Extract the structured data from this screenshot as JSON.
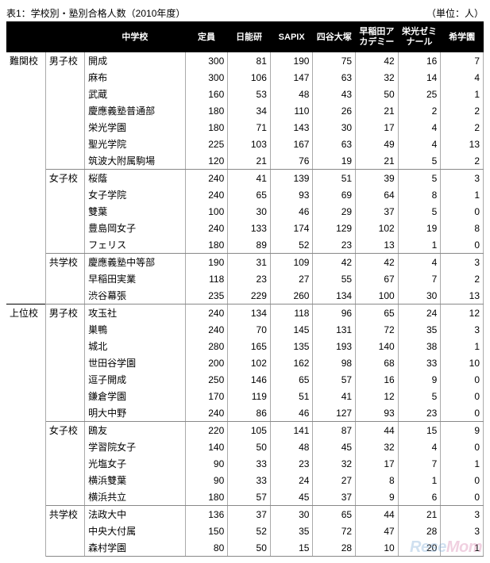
{
  "title": "表1：学校別・塾別合格人数（2010年度）",
  "unit": "（単位：人）",
  "watermark": {
    "left": "Rese",
    "right": "Mom"
  },
  "cram_schools": [
    "日能研",
    "SAPIX",
    "四谷大塚",
    "早稲田アカデミー",
    "栄光ゼミナール",
    "希学園"
  ],
  "col_labels": {
    "school": "中学校",
    "capacity": "定員"
  },
  "tiers": [
    {
      "name": "難関校",
      "groups": [
        {
          "type": "男子校",
          "rows": [
            {
              "school": "開成",
              "capacity": 300,
              "vals": [
                81,
                190,
                75,
                42,
                16,
                7
              ]
            },
            {
              "school": "麻布",
              "capacity": 300,
              "vals": [
                106,
                147,
                63,
                32,
                14,
                4
              ]
            },
            {
              "school": "武蔵",
              "capacity": 160,
              "vals": [
                53,
                48,
                43,
                50,
                25,
                1
              ]
            },
            {
              "school": "慶應義塾普通部",
              "capacity": 180,
              "vals": [
                34,
                110,
                26,
                21,
                2,
                2
              ]
            },
            {
              "school": "栄光学園",
              "capacity": 180,
              "vals": [
                71,
                143,
                30,
                17,
                4,
                2
              ]
            },
            {
              "school": "聖光学院",
              "capacity": 225,
              "vals": [
                103,
                167,
                63,
                49,
                4,
                13
              ]
            },
            {
              "school": "筑波大附属駒場",
              "capacity": 120,
              "vals": [
                21,
                76,
                19,
                21,
                5,
                2
              ]
            }
          ]
        },
        {
          "type": "女子校",
          "rows": [
            {
              "school": "桜蔭",
              "capacity": 240,
              "vals": [
                41,
                139,
                51,
                39,
                5,
                3
              ]
            },
            {
              "school": "女子学院",
              "capacity": 240,
              "vals": [
                65,
                93,
                69,
                64,
                8,
                1
              ]
            },
            {
              "school": "雙葉",
              "capacity": 100,
              "vals": [
                30,
                46,
                29,
                37,
                5,
                0
              ]
            },
            {
              "school": "豊島岡女子",
              "capacity": 240,
              "vals": [
                133,
                174,
                129,
                102,
                19,
                8
              ]
            },
            {
              "school": "フェリス",
              "capacity": 180,
              "vals": [
                89,
                52,
                23,
                13,
                1,
                0
              ]
            }
          ]
        },
        {
          "type": "共学校",
          "rows": [
            {
              "school": "慶應義塾中等部",
              "capacity": 190,
              "vals": [
                31,
                109,
                42,
                42,
                4,
                3
              ]
            },
            {
              "school": "早稲田実業",
              "capacity": 118,
              "vals": [
                23,
                27,
                55,
                67,
                7,
                2
              ]
            },
            {
              "school": "渋谷幕張",
              "capacity": 235,
              "vals": [
                229,
                260,
                134,
                100,
                30,
                13
              ]
            }
          ]
        }
      ]
    },
    {
      "name": "上位校",
      "groups": [
        {
          "type": "男子校",
          "rows": [
            {
              "school": "攻玉社",
              "capacity": 240,
              "vals": [
                134,
                118,
                96,
                65,
                24,
                12
              ]
            },
            {
              "school": "巣鴨",
              "capacity": 240,
              "vals": [
                70,
                145,
                131,
                72,
                35,
                3
              ]
            },
            {
              "school": "城北",
              "capacity": 280,
              "vals": [
                165,
                135,
                193,
                140,
                38,
                1
              ]
            },
            {
              "school": "世田谷学園",
              "capacity": 200,
              "vals": [
                102,
                162,
                98,
                68,
                33,
                10
              ]
            },
            {
              "school": "逗子開成",
              "capacity": 250,
              "vals": [
                146,
                65,
                57,
                16,
                9,
                0
              ]
            },
            {
              "school": "鎌倉学園",
              "capacity": 170,
              "vals": [
                119,
                51,
                41,
                12,
                5,
                0
              ]
            },
            {
              "school": "明大中野",
              "capacity": 240,
              "vals": [
                86,
                46,
                127,
                93,
                23,
                0
              ]
            }
          ]
        },
        {
          "type": "女子校",
          "rows": [
            {
              "school": "鴎友",
              "capacity": 220,
              "vals": [
                105,
                141,
                87,
                44,
                15,
                9
              ]
            },
            {
              "school": "学習院女子",
              "capacity": 140,
              "vals": [
                50,
                48,
                45,
                32,
                4,
                0
              ]
            },
            {
              "school": "光塩女子",
              "capacity": 90,
              "vals": [
                33,
                23,
                32,
                17,
                7,
                1
              ]
            },
            {
              "school": "横浜雙葉",
              "capacity": 90,
              "vals": [
                33,
                24,
                27,
                8,
                1,
                0
              ]
            },
            {
              "school": "横浜共立",
              "capacity": 180,
              "vals": [
                57,
                45,
                37,
                9,
                6,
                0
              ]
            }
          ]
        },
        {
          "type": "共学校",
          "rows": [
            {
              "school": "法政大中",
              "capacity": 136,
              "vals": [
                37,
                30,
                65,
                44,
                21,
                3
              ]
            },
            {
              "school": "中央大付属",
              "capacity": 150,
              "vals": [
                52,
                35,
                72,
                47,
                28,
                3
              ]
            },
            {
              "school": "森村学園",
              "capacity": 80,
              "vals": [
                50,
                15,
                28,
                10,
                20,
                1
              ]
            }
          ]
        }
      ]
    }
  ]
}
